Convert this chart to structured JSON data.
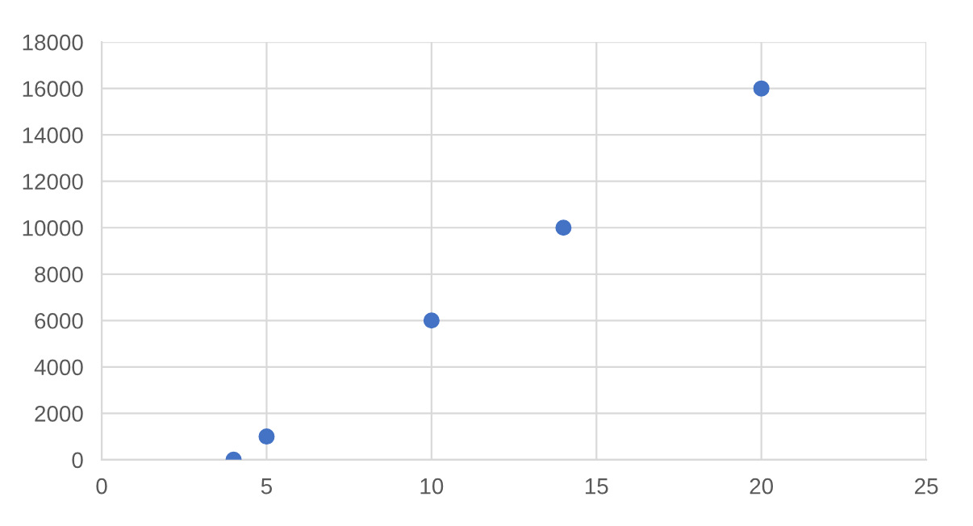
{
  "chart_data": {
    "type": "scatter",
    "x": [
      4,
      5,
      10,
      14,
      20
    ],
    "values": [
      0,
      1000,
      6000,
      10000,
      16000
    ],
    "color": "#4472c4",
    "marker": "circle",
    "xlim": [
      0,
      25
    ],
    "xticks": [
      0,
      5,
      10,
      15,
      20,
      25
    ],
    "ylim": [
      0,
      18000
    ],
    "yticks": [
      0,
      2000,
      4000,
      6000,
      8000,
      10000,
      12000,
      14000,
      16000,
      18000
    ],
    "grid": true,
    "legend": false
  }
}
